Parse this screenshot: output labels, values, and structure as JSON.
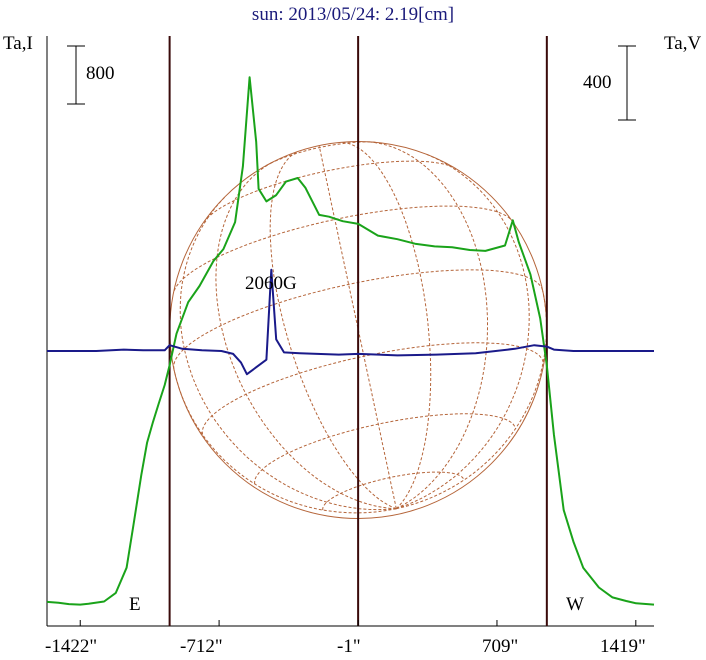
{
  "title": "sun: 2013/05/24: 2.19[cm]",
  "left_axis_label": "Ta,I",
  "right_axis_label": "Ta,V",
  "scale_bar_intensity": "800",
  "scale_bar_polarization": "400",
  "east_label": "E",
  "west_label": "W",
  "annotation": "2060G",
  "colors": {
    "intensity": "#1aa31a",
    "polarization": "#1a1a8a",
    "grid": "#b5653a",
    "vertical_lines": "#3a0a0a",
    "title": "#1a1a7a"
  },
  "chart_data": {
    "type": "line",
    "title": "sun: 2013/05/24: 2.19[cm]",
    "xlabel": "",
    "x_tick_labels": [
      "-1422\"",
      "-712\"",
      "-1\"",
      "709\"",
      "1419\""
    ],
    "x_ticks": [
      -1422,
      -712,
      -1,
      709,
      1419
    ],
    "xlim": [
      -1592,
      1512
    ],
    "ylabel_left": "Ta,I",
    "ylabel_right": "Ta,V",
    "vertical_markers": [
      -965,
      -1,
      964
    ],
    "series": [
      {
        "name": "Ta,I",
        "values": [
          [
            -1592,
            90
          ],
          [
            -1533,
            80
          ],
          [
            -1480,
            65
          ],
          [
            -1422,
            60
          ],
          [
            -1380,
            70
          ],
          [
            -1300,
            95
          ],
          [
            -1240,
            190
          ],
          [
            -1185,
            470
          ],
          [
            -1150,
            940
          ],
          [
            -1110,
            1500
          ],
          [
            -1080,
            1860
          ],
          [
            -1050,
            2090
          ],
          [
            -1020,
            2300
          ],
          [
            -990,
            2500
          ],
          [
            -965,
            2720
          ],
          [
            -930,
            3070
          ],
          [
            -870,
            3420
          ],
          [
            -812,
            3600
          ],
          [
            -740,
            3880
          ],
          [
            -690,
            4010
          ],
          [
            -630,
            4310
          ],
          [
            -590,
            4930
          ],
          [
            -556,
            5920
          ],
          [
            -522,
            5200
          ],
          [
            -510,
            4680
          ],
          [
            -470,
            4540
          ],
          [
            -420,
            4610
          ],
          [
            -370,
            4760
          ],
          [
            -310,
            4800
          ],
          [
            -270,
            4690
          ],
          [
            -200,
            4390
          ],
          [
            -150,
            4370
          ],
          [
            -80,
            4320
          ],
          [
            0,
            4290
          ],
          [
            100,
            4160
          ],
          [
            200,
            4120
          ],
          [
            290,
            4070
          ],
          [
            390,
            4040
          ],
          [
            480,
            4030
          ],
          [
            570,
            4000
          ],
          [
            650,
            3990
          ],
          [
            750,
            4050
          ],
          [
            790,
            4330
          ],
          [
            820,
            4090
          ],
          [
            880,
            3730
          ],
          [
            930,
            3240
          ],
          [
            964,
            2720
          ],
          [
            1000,
            1950
          ],
          [
            1050,
            1110
          ],
          [
            1100,
            760
          ],
          [
            1150,
            470
          ],
          [
            1230,
            250
          ],
          [
            1300,
            140
          ],
          [
            1370,
            100
          ],
          [
            1420,
            75
          ],
          [
            1512,
            60
          ]
        ]
      },
      {
        "name": "Ta,V",
        "values": [
          [
            -1592,
            0
          ],
          [
            -1340,
            0
          ],
          [
            -1200,
            10
          ],
          [
            -1100,
            5
          ],
          [
            -990,
            5
          ],
          [
            -965,
            40
          ],
          [
            -900,
            15
          ],
          [
            -800,
            5
          ],
          [
            -700,
            0
          ],
          [
            -640,
            -20
          ],
          [
            -600,
            -80
          ],
          [
            -570,
            -160
          ],
          [
            -540,
            -130
          ],
          [
            -500,
            -90
          ],
          [
            -470,
            -60
          ],
          [
            -445,
            560
          ],
          [
            -420,
            80
          ],
          [
            -380,
            -10
          ],
          [
            -300,
            -15
          ],
          [
            -100,
            -25
          ],
          [
            0,
            -20
          ],
          [
            200,
            -30
          ],
          [
            400,
            -25
          ],
          [
            600,
            -15
          ],
          [
            800,
            15
          ],
          [
            900,
            40
          ],
          [
            964,
            30
          ],
          [
            1000,
            10
          ],
          [
            1100,
            0
          ],
          [
            1512,
            0
          ]
        ]
      }
    ],
    "annotations": [
      {
        "text": "2060G",
        "x": -470
      }
    ]
  }
}
